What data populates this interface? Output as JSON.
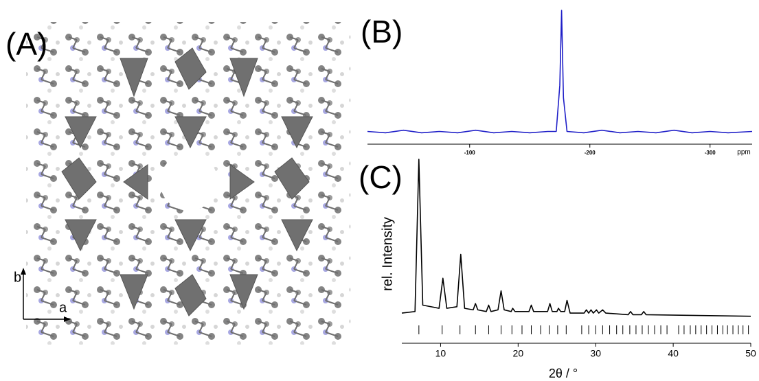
{
  "structure": {
    "panel_label": "(A)",
    "axis_a": "a",
    "axis_b": "b"
  },
  "chart_data": [
    {
      "type": "line",
      "panel_label": "(B)",
      "x": [
        -15,
        -30,
        -45,
        -60,
        -75,
        -90,
        -105,
        -120,
        -135,
        -150,
        -165,
        -172,
        -175,
        -176.5,
        -178,
        -181,
        -195,
        -210,
        -225,
        -240,
        -255,
        -270,
        -285,
        -300,
        -315,
        -335
      ],
      "values": [
        3,
        2,
        4,
        2,
        3,
        2,
        4,
        2,
        3,
        2,
        3,
        3,
        40,
        100,
        30,
        3,
        2,
        4,
        2,
        3,
        2,
        4,
        2,
        3,
        2,
        3
      ],
      "xlim": [
        -15,
        -335
      ],
      "ylim": [
        0,
        100
      ],
      "xticks": [
        -100,
        -200,
        -300
      ],
      "xlabel": "ppm",
      "color": "#1f1fc8"
    },
    {
      "type": "line",
      "panel_label": "(C)",
      "xlabel": "2θ / °",
      "ylabel": "rel. Intensity",
      "x": [
        5,
        6.7,
        7.2,
        7.7,
        9.8,
        10.3,
        10.8,
        12.1,
        12.6,
        13.1,
        14.2,
        14.5,
        14.8,
        15.9,
        16.2,
        16.5,
        17.4,
        17.8,
        18.2,
        19.1,
        19.3,
        19.6,
        21.4,
        21.7,
        22.0,
        23.8,
        24.1,
        24.4,
        25.0,
        25.2,
        25.5,
        26.0,
        26.3,
        26.7,
        28.5,
        28.8,
        29.1,
        29.4,
        29.7,
        30.1,
        30.4,
        30.9,
        31.3,
        34.2,
        34.5,
        34.8,
        35.9,
        36.2,
        36.5,
        50
      ],
      "values": [
        3,
        4,
        100,
        8,
        6,
        25,
        6,
        7,
        40,
        6,
        5,
        9,
        5,
        4,
        8,
        4,
        5,
        17,
        5,
        4,
        6,
        4,
        4,
        8,
        4,
        4,
        9,
        4,
        4,
        6,
        4,
        4,
        11,
        3,
        3,
        5,
        3,
        5,
        3,
        5,
        3,
        5,
        3,
        2,
        4,
        2,
        2,
        4,
        2,
        1
      ],
      "reflections": [
        7.2,
        10.2,
        12.5,
        14.5,
        16.2,
        17.8,
        19.2,
        20.5,
        21.7,
        22.9,
        24.0,
        25.1,
        26.2,
        28.2,
        29.1,
        30.0,
        30.9,
        31.8,
        32.7,
        33.5,
        34.4,
        35.2,
        36.0,
        36.8,
        37.6,
        38.4,
        39.2,
        40.7,
        41.4,
        42.2,
        42.9,
        43.6,
        44.3,
        45.0,
        45.7,
        46.4,
        47.0,
        47.7,
        48.4,
        49.0,
        49.7
      ],
      "xlim": [
        5,
        50
      ],
      "ylim": [
        0,
        100
      ],
      "xticks": [
        10,
        20,
        30,
        40,
        50
      ],
      "color": "#000000"
    }
  ]
}
